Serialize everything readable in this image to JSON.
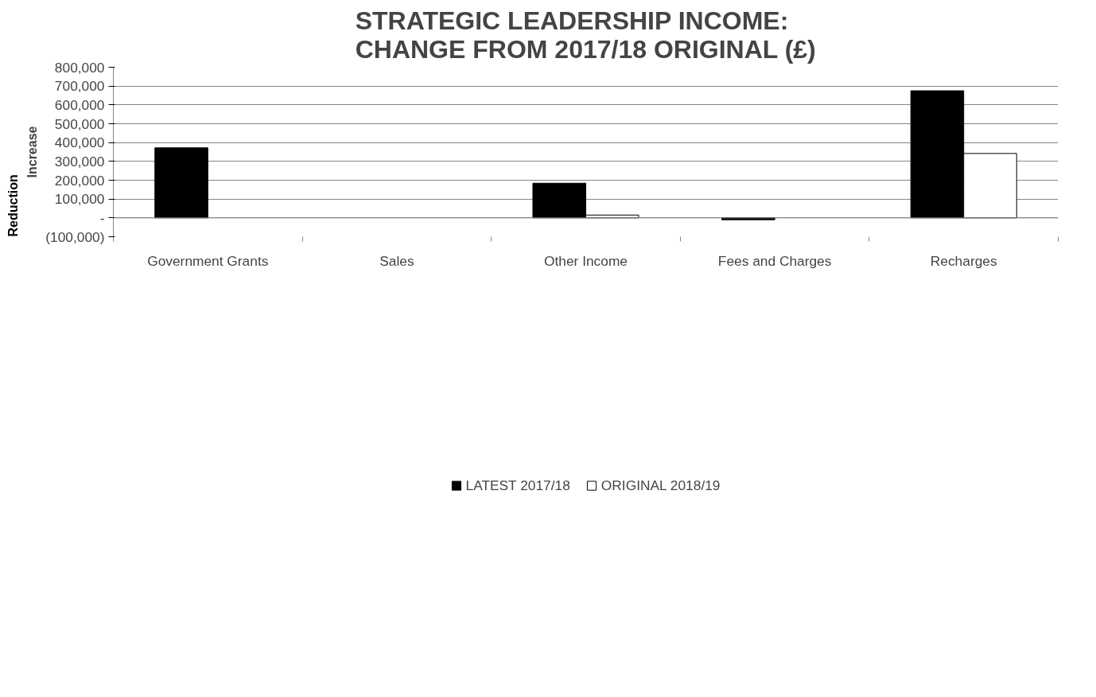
{
  "chart_data": {
    "type": "bar",
    "title": "STRATEGIC LEADERSHIP INCOME:\nCHANGE FROM 2017/18 ORIGINAL (£)",
    "ylabel": "Increase",
    "annotations": [
      "Reduction"
    ],
    "categories": [
      "Government Grants",
      "Sales",
      "Other Income",
      "Fees and Charges",
      "Recharges"
    ],
    "series": [
      {
        "name": "LATEST 2017/18",
        "color": "#000000",
        "values": [
          372000,
          null,
          184000,
          -10000,
          675000
        ]
      },
      {
        "name": "ORIGINAL 2018/19",
        "color": "#ffffff",
        "values": [
          null,
          null,
          15000,
          null,
          342000
        ]
      }
    ],
    "ylim": [
      -100000,
      800000
    ],
    "yticks": [
      {
        "value": -100000,
        "label": "(100,000)"
      },
      {
        "value": 0,
        "label": "-"
      },
      {
        "value": 100000,
        "label": "100,000"
      },
      {
        "value": 200000,
        "label": "200,000"
      },
      {
        "value": 300000,
        "label": "300,000"
      },
      {
        "value": 400000,
        "label": "400,000"
      },
      {
        "value": 500000,
        "label": "500,000"
      },
      {
        "value": 600000,
        "label": "600,000"
      },
      {
        "value": 700000,
        "label": "700,000"
      },
      {
        "value": 800000,
        "label": "800,000"
      }
    ],
    "grid": "y",
    "legend": "bottom"
  }
}
